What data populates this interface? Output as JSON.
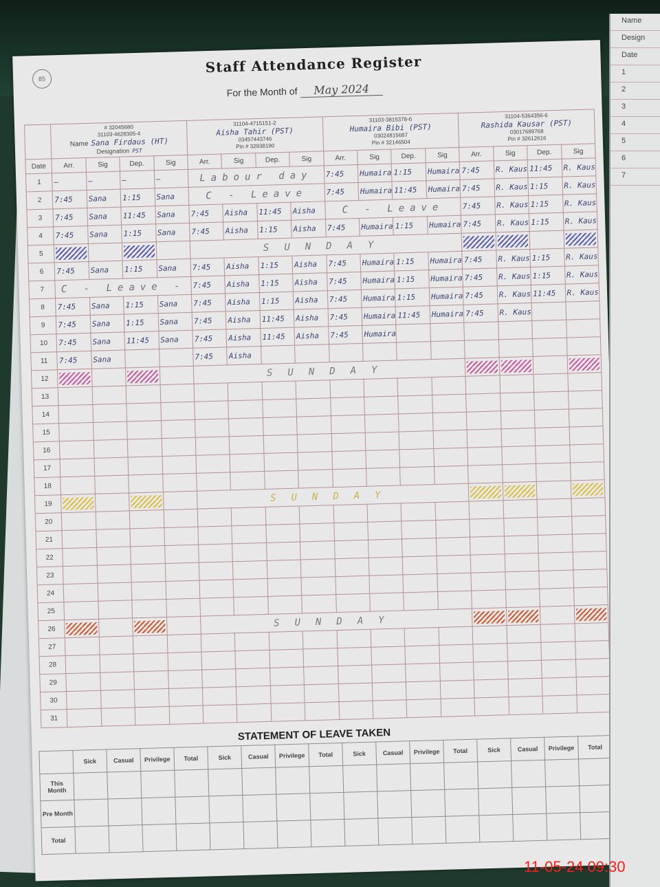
{
  "title": "Staff Attendance Register",
  "month_label": "For the Month of",
  "month_value": "May 2024",
  "page_mark": "85",
  "labels": {
    "name": "Name",
    "designation": "Designation",
    "date": "Date",
    "cols": [
      "Arr.",
      "Sig",
      "Dep.",
      "Sig"
    ]
  },
  "staff": [
    {
      "name": "Sana Firdaus (HT)",
      "designation": "PST",
      "cnic": "31103-4628305-4",
      "extra": "# 32045680"
    },
    {
      "name": "Aisha Tahir (PST)",
      "cnic": "31104-4715151-2",
      "phone": "03457443746",
      "pin": "Pin # 32938190"
    },
    {
      "name": "Humaira Bibi (PST)",
      "cnic": "31103-3815378-6",
      "phone": "03024815687",
      "pin": "Pin # 32146504"
    },
    {
      "name": "Rashida Kausar (PST)",
      "cnic": "31104-5364356-6",
      "phone": "03017689768",
      "pin": "Pin # 32612616"
    }
  ],
  "shade_colors": {
    "blue": "#5a5fb0",
    "pink": "#c85aa0",
    "yellow": "#d9c040",
    "orange": "#d0582e"
  },
  "rows": [
    {
      "date": "1",
      "cells": [
        "—",
        "—",
        "—",
        "—",
        "Labour day",
        "",
        "",
        "",
        "7:45",
        "Humaira",
        "1:15",
        "Humaira",
        "7:45",
        "R. Kausar",
        "11:45",
        "R. Kausar"
      ],
      "span": {
        "from": 4,
        "len": 4
      }
    },
    {
      "date": "2",
      "cells": [
        "7:45",
        "Sana",
        "1:15",
        "Sana",
        "C - Leave",
        "",
        "",
        "",
        "7:45",
        "Humaira",
        "11:45",
        "Humaira",
        "7:45",
        "R. Kausar",
        "1:15",
        "R. Kausar"
      ],
      "span": {
        "from": 4,
        "len": 4
      }
    },
    {
      "date": "3",
      "cells": [
        "7:45",
        "Sana",
        "11:45",
        "Sana",
        "7:45",
        "Aisha",
        "11:45",
        "Aisha",
        "C - Leave",
        "",
        "",
        "",
        "7:45",
        "R. Kausar",
        "1:15",
        "R. Kausar"
      ],
      "span": {
        "from": 8,
        "len": 4
      }
    },
    {
      "date": "4",
      "cells": [
        "7:45",
        "Sana",
        "1:15",
        "Sana",
        "7:45",
        "Aisha",
        "1:15",
        "Aisha",
        "7:45",
        "Humaira",
        "1:15",
        "Humaira",
        "7:45",
        "R. Kausar",
        "1:15",
        "R. Kausar"
      ]
    },
    {
      "date": "5",
      "sunday": "SUNDAY",
      "shade": "blue"
    },
    {
      "date": "6",
      "cells": [
        "7:45",
        "Sana",
        "1:15",
        "Sana",
        "7:45",
        "Aisha",
        "1:15",
        "Aisha",
        "7:45",
        "Humaira",
        "1:15",
        "Humaira",
        "7:45",
        "R. Kausar",
        "1:15",
        "R. Kausar"
      ]
    },
    {
      "date": "7",
      "cells": [
        "C - Leave -",
        "",
        "",
        "",
        "7:45",
        "Aisha",
        "1:15",
        "Aisha",
        "7:45",
        "Humaira",
        "1:15",
        "Humaira",
        "7:45",
        "R. Kausar",
        "1:15",
        "R. Kausar"
      ],
      "span": {
        "from": 0,
        "len": 4
      }
    },
    {
      "date": "8",
      "cells": [
        "7:45",
        "Sana",
        "1:15",
        "Sana",
        "7:45",
        "Aisha",
        "1:15",
        "Aisha",
        "7:45",
        "Humaira",
        "1:15",
        "Humaira",
        "7:45",
        "R. Kausar",
        "11:45",
        "R. Kausar"
      ]
    },
    {
      "date": "9",
      "cells": [
        "7:45",
        "Sana",
        "1:15",
        "Sana",
        "7:45",
        "Aisha",
        "11:45",
        "Aisha",
        "7:45",
        "Humaira",
        "11:45",
        "Humaira",
        "7:45",
        "R. Kausar",
        "",
        ""
      ]
    },
    {
      "date": "10",
      "cells": [
        "7:45",
        "Sana",
        "11:45",
        "Sana",
        "7:45",
        "Aisha",
        "11:45",
        "Aisha",
        "7:45",
        "Humaira",
        "",
        "",
        "",
        "",
        "",
        ""
      ]
    },
    {
      "date": "11",
      "cells": [
        "7:45",
        "Sana",
        "",
        "",
        "7:45",
        "Aisha",
        "",
        "",
        "",
        "",
        "",
        "",
        "",
        "",
        "",
        ""
      ]
    },
    {
      "date": "12",
      "sunday": "SUNDAY",
      "shade": "pink"
    },
    {
      "date": "13"
    },
    {
      "date": "14"
    },
    {
      "date": "15"
    },
    {
      "date": "16"
    },
    {
      "date": "17"
    },
    {
      "date": "18"
    },
    {
      "date": "19",
      "sunday": "SUNDAY",
      "shade": "yellow"
    },
    {
      "date": "20"
    },
    {
      "date": "21"
    },
    {
      "date": "22"
    },
    {
      "date": "23"
    },
    {
      "date": "24"
    },
    {
      "date": "25"
    },
    {
      "date": "26",
      "sunday": "SUNDAY",
      "shade": "orange"
    },
    {
      "date": "27"
    },
    {
      "date": "28"
    },
    {
      "date": "29"
    },
    {
      "date": "30"
    },
    {
      "date": "31"
    }
  ],
  "leave": {
    "title": "STATEMENT OF LEAVE TAKEN",
    "cols": [
      "Sick",
      "Casual",
      "Privilege",
      "Total"
    ],
    "rows": [
      "This Month",
      "Pre Month",
      "Total"
    ]
  },
  "right_page": {
    "labels": [
      "Name",
      "Design",
      "Date",
      "1",
      "2",
      "3",
      "4",
      "5",
      "6",
      "7"
    ]
  },
  "timestamp": "11-05-24  09:30"
}
